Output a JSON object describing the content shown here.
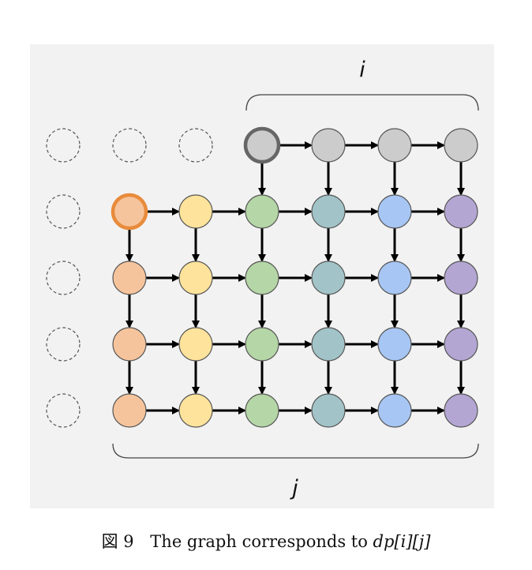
{
  "labels": {
    "top": "i",
    "bottom": "j"
  },
  "caption": {
    "figure_number": "図 9",
    "text": "The graph corresponds to",
    "expression": "dp[i][j]"
  },
  "colors": {
    "panel": "#f2f2f2",
    "gray": "#cccccc",
    "orange": "#f6c49c",
    "yellow": "#fde39b",
    "green": "#b5d6a6",
    "teal": "#a2c4c8",
    "blue": "#a7c6f4",
    "purple": "#b4a6d3",
    "highlight_orange": "#e88b3b",
    "highlight_gray": "#666666"
  },
  "grid": {
    "columns": 7,
    "rows": 5,
    "active_top_row_columns": [
      3,
      4,
      5,
      6
    ],
    "active_column_start": 1,
    "column_colors": [
      "none",
      "orange",
      "yellow",
      "green",
      "teal",
      "blue",
      "purple"
    ],
    "highlighted_nodes": [
      {
        "row": 0,
        "col": 3,
        "ring": "highlight_gray"
      },
      {
        "row": 1,
        "col": 1,
        "ring": "highlight_orange"
      }
    ]
  }
}
